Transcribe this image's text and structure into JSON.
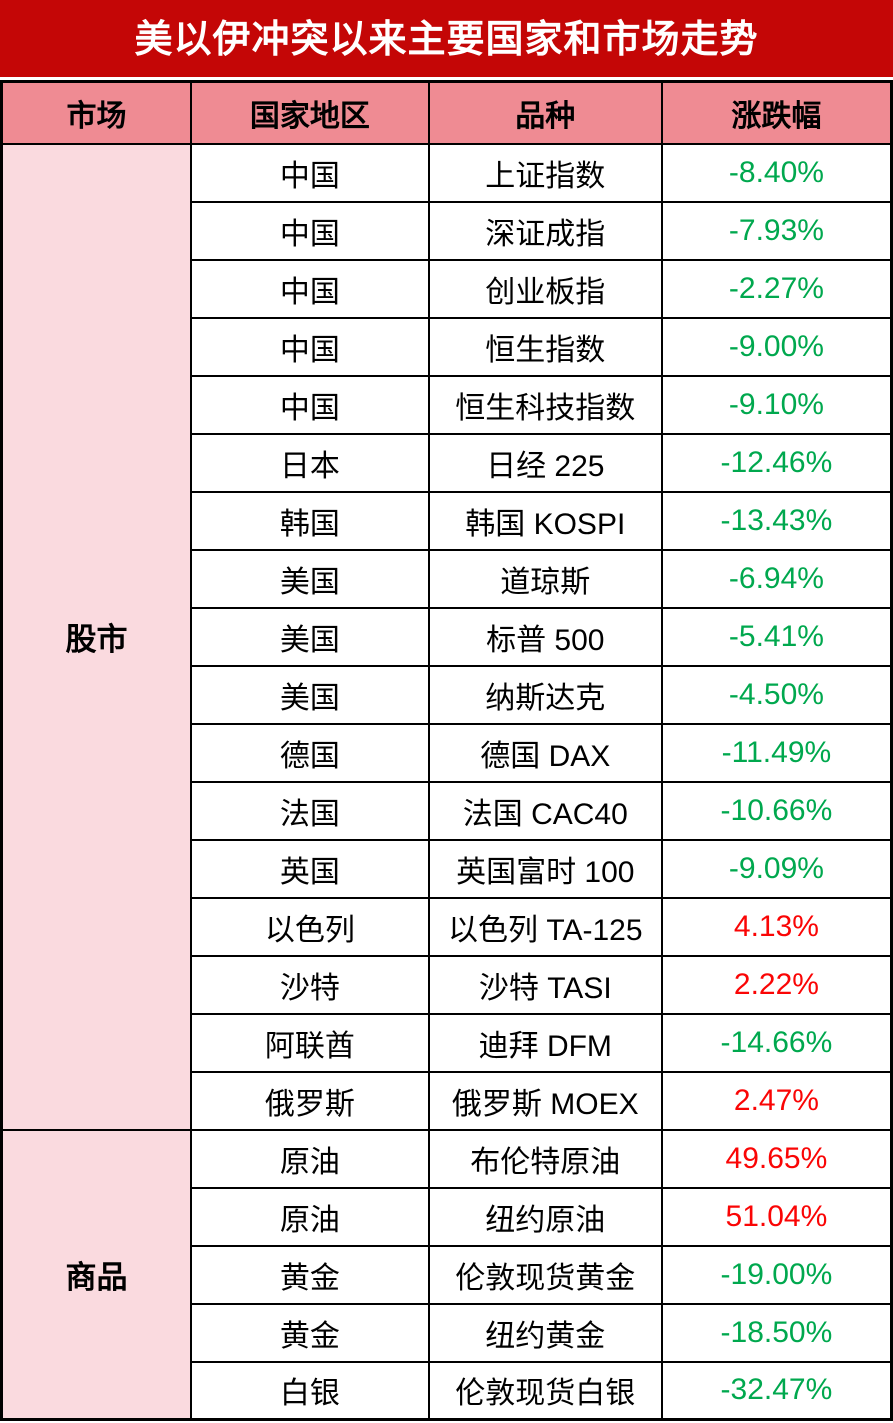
{
  "chart_data": {
    "type": "table",
    "title": "美以伊冲突以来主要国家和市场走势",
    "columns": [
      "市场",
      "国家地区",
      "品种",
      "涨跌幅"
    ],
    "groups": [
      {
        "market": "股市",
        "rows": [
          {
            "region": "中国",
            "instrument": "上证指数",
            "change": "-8.40%",
            "direction": "down"
          },
          {
            "region": "中国",
            "instrument": "深证成指",
            "change": "-7.93%",
            "direction": "down"
          },
          {
            "region": "中国",
            "instrument": "创业板指",
            "change": "-2.27%",
            "direction": "down"
          },
          {
            "region": "中国",
            "instrument": "恒生指数",
            "change": "-9.00%",
            "direction": "down"
          },
          {
            "region": "中国",
            "instrument": "恒生科技指数",
            "change": "-9.10%",
            "direction": "down"
          },
          {
            "region": "日本",
            "instrument": "日经 225",
            "change": "-12.46%",
            "direction": "down"
          },
          {
            "region": "韩国",
            "instrument": "韩国 KOSPI",
            "change": "-13.43%",
            "direction": "down"
          },
          {
            "region": "美国",
            "instrument": "道琼斯",
            "change": "-6.94%",
            "direction": "down"
          },
          {
            "region": "美国",
            "instrument": "标普 500",
            "change": "-5.41%",
            "direction": "down"
          },
          {
            "region": "美国",
            "instrument": "纳斯达克",
            "change": "-4.50%",
            "direction": "down"
          },
          {
            "region": "德国",
            "instrument": "德国 DAX",
            "change": "-11.49%",
            "direction": "down"
          },
          {
            "region": "法国",
            "instrument": "法国 CAC40",
            "change": "-10.66%",
            "direction": "down"
          },
          {
            "region": "英国",
            "instrument": "英国富时 100",
            "change": "-9.09%",
            "direction": "down"
          },
          {
            "region": "以色列",
            "instrument": "以色列 TA-125",
            "change": "4.13%",
            "direction": "up"
          },
          {
            "region": "沙特",
            "instrument": "沙特 TASI",
            "change": "2.22%",
            "direction": "up"
          },
          {
            "region": "阿联酋",
            "instrument": "迪拜 DFM",
            "change": "-14.66%",
            "direction": "down"
          },
          {
            "region": "俄罗斯",
            "instrument": "俄罗斯 MOEX",
            "change": "2.47%",
            "direction": "up"
          }
        ]
      },
      {
        "market": "商品",
        "rows": [
          {
            "region": "原油",
            "instrument": "布伦特原油",
            "change": "49.65%",
            "direction": "up"
          },
          {
            "region": "原油",
            "instrument": "纽约原油",
            "change": "51.04%",
            "direction": "up"
          },
          {
            "region": "黄金",
            "instrument": "伦敦现货黄金",
            "change": "-19.00%",
            "direction": "down"
          },
          {
            "region": "黄金",
            "instrument": "纽约黄金",
            "change": "-18.50%",
            "direction": "down"
          },
          {
            "region": "白银",
            "instrument": "伦敦现货白银",
            "change": "-32.47%",
            "direction": "down"
          }
        ]
      }
    ],
    "colors": {
      "title_bg": "#C40606",
      "title_text": "#FFFFFF",
      "header_bg": "#EF8B93",
      "group_bg": "#FADADF",
      "negative_change": "#00A84E",
      "positive_change": "#FA0505",
      "border": "#000000"
    }
  }
}
